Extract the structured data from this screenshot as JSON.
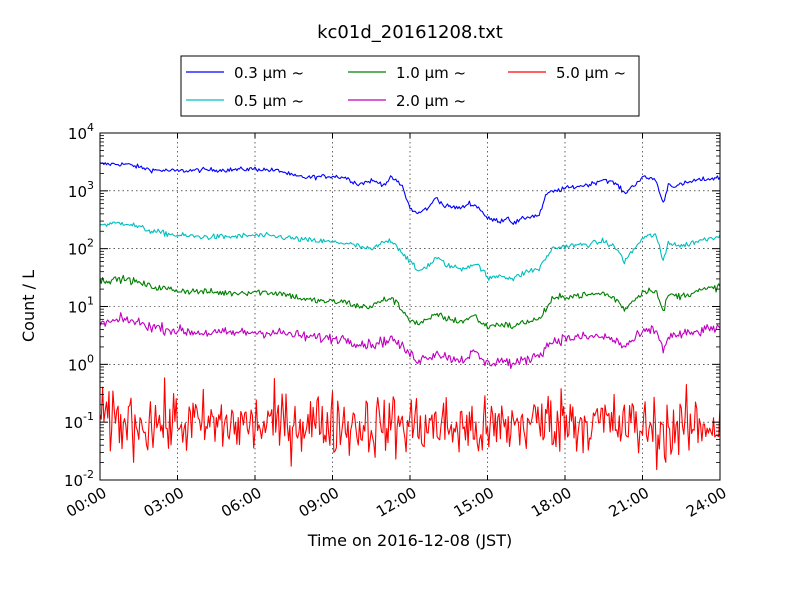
{
  "chart_data": {
    "type": "line",
    "title": "kc01d_20161208.txt",
    "xlabel": "Time on 2016-12-08 (JST)",
    "ylabel": "Count / L",
    "x_tick_labels": [
      "00:00",
      "03:00",
      "06:00",
      "09:00",
      "12:00",
      "15:00",
      "18:00",
      "21:00",
      "24:00"
    ],
    "x_tick_hours": [
      0,
      3,
      6,
      9,
      12,
      15,
      18,
      21,
      24
    ],
    "xlim": [
      0,
      24
    ],
    "y_scale": "log",
    "ylim": [
      0.01,
      10000
    ],
    "y_tick_values": [
      0.01,
      0.1,
      1,
      10,
      100,
      1000,
      10000
    ],
    "y_tick_exponents": [
      "-2",
      "-1",
      "0",
      "1",
      "2",
      "3",
      "4"
    ],
    "y_tick_base": "10",
    "grid": true,
    "legend_placement": "top-center, above plot",
    "series": [
      {
        "name": "0.3 μm ~",
        "color": "#0000ff",
        "noise": 0.02,
        "points": [
          [
            0,
            2900
          ],
          [
            1,
            2900
          ],
          [
            2,
            2300
          ],
          [
            3,
            2200
          ],
          [
            4,
            2300
          ],
          [
            5,
            2300
          ],
          [
            6,
            2400
          ],
          [
            7,
            2200
          ],
          [
            7.5,
            1800
          ],
          [
            8,
            1700
          ],
          [
            9,
            1800
          ],
          [
            9.5,
            1700
          ],
          [
            10,
            1300
          ],
          [
            10.5,
            1500
          ],
          [
            11,
            1300
          ],
          [
            11.3,
            1700
          ],
          [
            11.7,
            1200
          ],
          [
            12,
            500
          ],
          [
            12.3,
            400
          ],
          [
            12.8,
            550
          ],
          [
            13,
            800
          ],
          [
            13.3,
            550
          ],
          [
            14,
            500
          ],
          [
            14.3,
            620
          ],
          [
            14.7,
            500
          ],
          [
            15,
            330
          ],
          [
            15.5,
            300
          ],
          [
            15.8,
            350
          ],
          [
            16,
            270
          ],
          [
            16.5,
            350
          ],
          [
            17,
            380
          ],
          [
            17.3,
            900
          ],
          [
            18,
            1100
          ],
          [
            19,
            1300
          ],
          [
            19.5,
            1600
          ],
          [
            20,
            1300
          ],
          [
            20.3,
            900
          ],
          [
            21,
            1700
          ],
          [
            21.5,
            1600
          ],
          [
            21.8,
            600
          ],
          [
            22,
            1300
          ],
          [
            22.3,
            1200
          ],
          [
            23,
            1500
          ],
          [
            24,
            1700
          ]
        ]
      },
      {
        "name": "0.5 μm ~",
        "color": "#00bfbf",
        "noise": 0.025,
        "points": [
          [
            0,
            260
          ],
          [
            1,
            280
          ],
          [
            2,
            200
          ],
          [
            3,
            170
          ],
          [
            4,
            160
          ],
          [
            5,
            160
          ],
          [
            6,
            170
          ],
          [
            7,
            160
          ],
          [
            8,
            140
          ],
          [
            9,
            130
          ],
          [
            9.5,
            125
          ],
          [
            10,
            110
          ],
          [
            10.5,
            95
          ],
          [
            11,
            130
          ],
          [
            11.3,
            140
          ],
          [
            12,
            60
          ],
          [
            12.3,
            40
          ],
          [
            12.8,
            55
          ],
          [
            13,
            70
          ],
          [
            13.5,
            50
          ],
          [
            14,
            45
          ],
          [
            14.5,
            55
          ],
          [
            14.8,
            45
          ],
          [
            15,
            30
          ],
          [
            15.5,
            35
          ],
          [
            16,
            30
          ],
          [
            16.5,
            40
          ],
          [
            17,
            45
          ],
          [
            17.5,
            100
          ],
          [
            18,
            110
          ],
          [
            19,
            120
          ],
          [
            19.5,
            135
          ],
          [
            20,
            100
          ],
          [
            20.3,
            60
          ],
          [
            21,
            150
          ],
          [
            21.5,
            180
          ],
          [
            21.8,
            60
          ],
          [
            22,
            130
          ],
          [
            22.5,
            110
          ],
          [
            23,
            130
          ],
          [
            24,
            170
          ]
        ]
      },
      {
        "name": "1.0 μm ~",
        "color": "#008000",
        "noise": 0.03,
        "points": [
          [
            0,
            28
          ],
          [
            1,
            30
          ],
          [
            2,
            22
          ],
          [
            3,
            19
          ],
          [
            4,
            18
          ],
          [
            5,
            17
          ],
          [
            6,
            18
          ],
          [
            7,
            17
          ],
          [
            7.5,
            15
          ],
          [
            8,
            13
          ],
          [
            9,
            12
          ],
          [
            9.5,
            12
          ],
          [
            10,
            10
          ],
          [
            10.5,
            10
          ],
          [
            11,
            13
          ],
          [
            11.3,
            14
          ],
          [
            12,
            6
          ],
          [
            12.3,
            5
          ],
          [
            12.8,
            6
          ],
          [
            13,
            7.5
          ],
          [
            13.5,
            6
          ],
          [
            14,
            5.5
          ],
          [
            14.5,
            7
          ],
          [
            14.8,
            5
          ],
          [
            15,
            4.5
          ],
          [
            15.5,
            5
          ],
          [
            16,
            4.5
          ],
          [
            16.5,
            5.5
          ],
          [
            17,
            6
          ],
          [
            17.5,
            13
          ],
          [
            18,
            15
          ],
          [
            19,
            16
          ],
          [
            19.5,
            17
          ],
          [
            20,
            13
          ],
          [
            20.3,
            9
          ],
          [
            21,
            18
          ],
          [
            21.5,
            20
          ],
          [
            21.8,
            8
          ],
          [
            22,
            16
          ],
          [
            22.5,
            15
          ],
          [
            23,
            18
          ],
          [
            24,
            22
          ]
        ]
      },
      {
        "name": "2.0 μm ~",
        "color": "#bf00bf",
        "noise": 0.045,
        "points": [
          [
            0,
            5
          ],
          [
            1,
            6
          ],
          [
            2,
            4.5
          ],
          [
            3,
            3.8
          ],
          [
            4,
            3.5
          ],
          [
            5,
            3.5
          ],
          [
            6,
            3.6
          ],
          [
            7,
            3.5
          ],
          [
            8,
            3
          ],
          [
            9,
            2.8
          ],
          [
            9.5,
            2.8
          ],
          [
            10,
            2.3
          ],
          [
            10.5,
            2.2
          ],
          [
            11,
            2.5
          ],
          [
            11.3,
            2.8
          ],
          [
            12,
            1.5
          ],
          [
            12.3,
            1.2
          ],
          [
            12.8,
            1.4
          ],
          [
            13,
            1.6
          ],
          [
            13.5,
            1.3
          ],
          [
            14,
            1.2
          ],
          [
            14.5,
            1.6
          ],
          [
            14.8,
            1.2
          ],
          [
            15,
            1
          ],
          [
            15.5,
            1.2
          ],
          [
            16,
            1
          ],
          [
            16.5,
            1.2
          ],
          [
            17,
            1.5
          ],
          [
            17.5,
            2.5
          ],
          [
            18,
            2.8
          ],
          [
            19,
            3
          ],
          [
            19.5,
            3
          ],
          [
            20,
            2.5
          ],
          [
            20.3,
            2
          ],
          [
            21,
            3.5
          ],
          [
            21.5,
            4
          ],
          [
            21.8,
            1.8
          ],
          [
            22,
            3
          ],
          [
            23,
            3.5
          ],
          [
            24,
            4.5
          ]
        ]
      },
      {
        "name": "5.0 μm ~",
        "color": "#ff0000",
        "noise": 0.28,
        "points": [
          [
            0,
            0.1
          ],
          [
            2,
            0.1
          ],
          [
            4,
            0.09
          ],
          [
            6,
            0.09
          ],
          [
            8,
            0.1
          ],
          [
            10,
            0.09
          ],
          [
            12,
            0.09
          ],
          [
            14,
            0.08
          ],
          [
            15,
            0.07
          ],
          [
            16,
            0.09
          ],
          [
            17,
            0.1
          ],
          [
            18,
            0.11
          ],
          [
            20,
            0.09
          ],
          [
            21,
            0.08
          ],
          [
            22,
            0.07
          ],
          [
            24,
            0.1
          ]
        ]
      }
    ]
  }
}
